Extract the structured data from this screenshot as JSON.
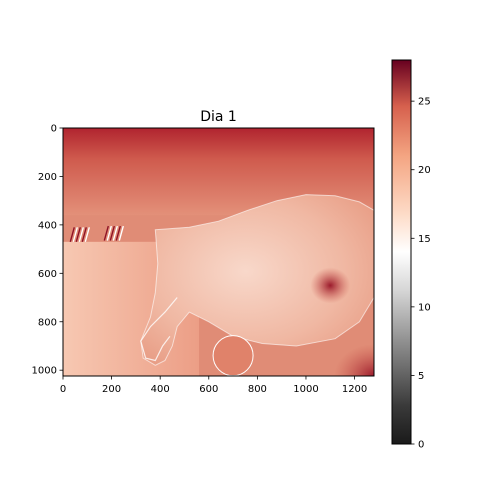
{
  "chart_data": {
    "type": "heatmap",
    "title": "Dia 1",
    "xlabel": "",
    "ylabel": "",
    "xlim": [
      0,
      1280
    ],
    "ylim": [
      1024,
      0
    ],
    "x_ticks": [
      0,
      200,
      400,
      600,
      800,
      1000,
      1200
    ],
    "y_ticks": [
      0,
      200,
      400,
      600,
      800,
      1000
    ],
    "colorbar": {
      "colormap": "RdGy_r",
      "range": [
        0,
        28
      ],
      "ticks": [
        0,
        5,
        10,
        15,
        20,
        25
      ]
    },
    "colors": {
      "background": "#e08c76",
      "top_region": "#c5403e",
      "body": "#f0b8a4",
      "body_highlight": "#f6d2c3",
      "lower_left_region": "#f4b79c",
      "hot_dark": "#8e1227",
      "outline": "#ffffff"
    }
  }
}
